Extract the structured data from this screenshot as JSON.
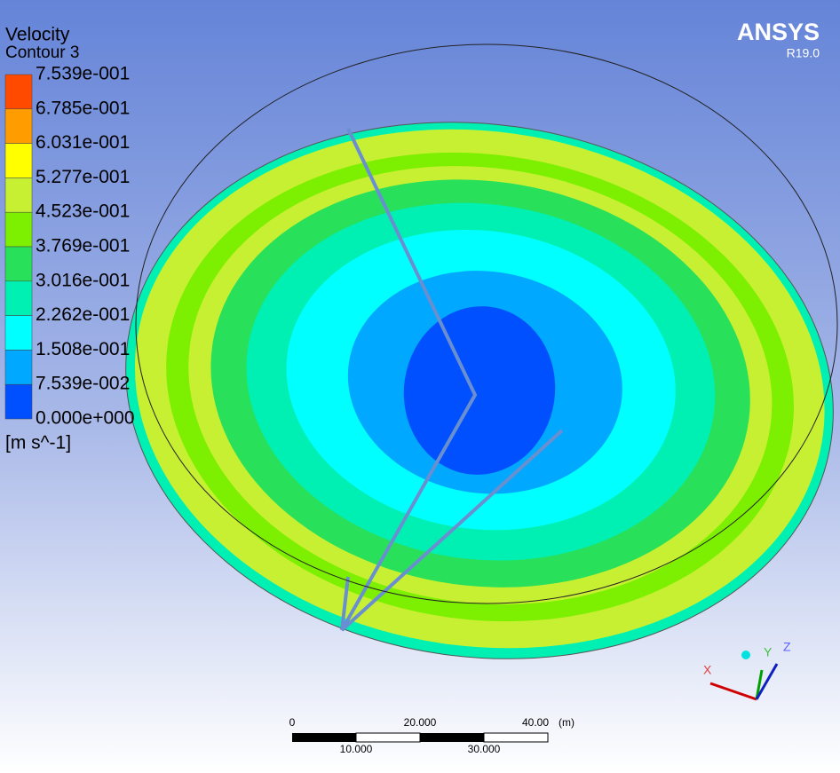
{
  "legend": {
    "title": "Velocity",
    "subtitle": "Contour 3",
    "labels": [
      "7.539e-001",
      "6.785e-001",
      "6.031e-001",
      "5.277e-001",
      "4.523e-001",
      "3.769e-001",
      "3.016e-001",
      "2.262e-001",
      "1.508e-001",
      "7.539e-002",
      "0.000e+000"
    ],
    "colors": [
      "#ff4a00",
      "#ff9c00",
      "#ffff00",
      "#c8f032",
      "#7cf000",
      "#28e05a",
      "#00f0b4",
      "#00ffff",
      "#00a8ff",
      "#0050ff"
    ],
    "unit": "[m s^-1]"
  },
  "logo": {
    "brand": "ANSYS",
    "version": "R19.0"
  },
  "scale_bar": {
    "top_labels": [
      "0",
      "20.000",
      "40.00"
    ],
    "unit": "(m)",
    "bottom_labels": [
      "10.000",
      "30.000"
    ]
  },
  "axes": {
    "x": "X",
    "y": "Y",
    "z": "Z"
  }
}
